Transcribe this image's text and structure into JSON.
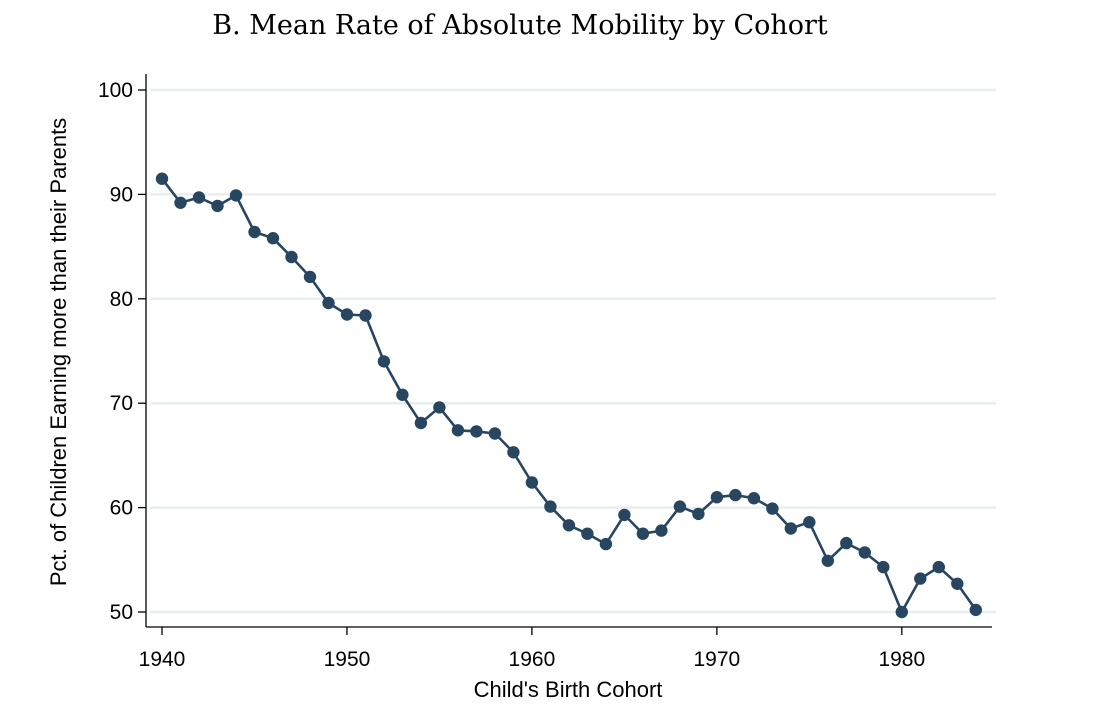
{
  "chart_data": {
    "type": "line",
    "title": "B. Mean Rate of Absolute Mobility by Cohort",
    "xlabel": "Child's Birth Cohort",
    "ylabel": "Pct. of Children Earning more than their Parents",
    "xlim": [
      1939.5,
      1985
    ],
    "ylim": [
      48.5,
      101.5
    ],
    "xticks": [
      1940,
      1950,
      1960,
      1970,
      1980
    ],
    "yticks": [
      50,
      60,
      70,
      80,
      90,
      100
    ],
    "grid": "horizontal",
    "markers": true,
    "color": "#294661",
    "gridColor": "#e6eef0",
    "series": [
      {
        "x": [
          1940,
          1941,
          1942,
          1943,
          1944,
          1945,
          1946,
          1947,
          1948,
          1949,
          1950,
          1951,
          1952,
          1953,
          1954,
          1955,
          1956,
          1957,
          1958,
          1959,
          1960,
          1961,
          1962,
          1963,
          1964,
          1965,
          1966,
          1967,
          1968,
          1969,
          1970,
          1971,
          1972,
          1973,
          1974,
          1975,
          1976,
          1977,
          1978,
          1979,
          1980,
          1981,
          1982,
          1983,
          1984
        ],
        "y": [
          91.5,
          89.2,
          89.7,
          88.9,
          89.9,
          86.4,
          85.8,
          84.0,
          82.1,
          79.6,
          78.5,
          78.4,
          74.0,
          70.8,
          68.1,
          69.6,
          67.4,
          67.3,
          67.1,
          65.3,
          62.4,
          60.1,
          58.3,
          57.5,
          56.5,
          59.3,
          57.5,
          57.8,
          60.1,
          59.4,
          61.0,
          61.2,
          60.9,
          59.9,
          58.0,
          58.6,
          54.9,
          56.6,
          55.7,
          54.3,
          50.0,
          53.2,
          54.3,
          52.7,
          50.2
        ]
      }
    ]
  }
}
